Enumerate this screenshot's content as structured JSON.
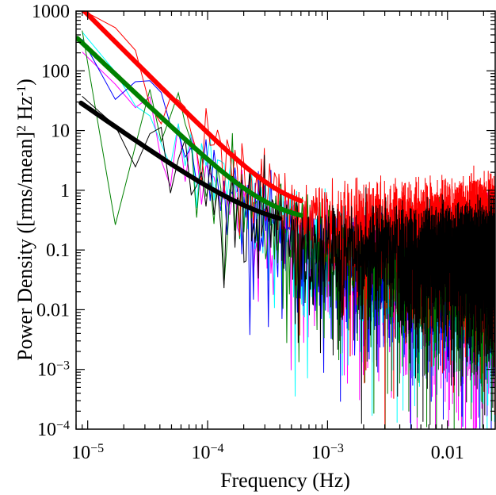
{
  "chart_data": {
    "type": "line",
    "title": "",
    "xlabel": "Frequency (Hz)",
    "ylabel_parts": [
      "Power Density ([rms/mean]",
      "2",
      " Hz",
      "-1",
      ")"
    ],
    "x_scale": "log",
    "y_scale": "log",
    "xlim": [
      8e-06,
      0.025
    ],
    "ylim": [
      0.0001,
      1000
    ],
    "x_ticks": [
      {
        "value": 1e-05,
        "base": "10",
        "exp": "−5"
      },
      {
        "value": 0.0001,
        "base": "10",
        "exp": "−4"
      },
      {
        "value": 0.001,
        "base": "10",
        "exp": "−3"
      },
      {
        "value": 0.01,
        "text": "0.01"
      }
    ],
    "y_ticks": [
      {
        "value": 1000,
        "text": "1000"
      },
      {
        "value": 100,
        "text": "100"
      },
      {
        "value": 10,
        "text": "10"
      },
      {
        "value": 1,
        "text": "1"
      },
      {
        "value": 0.1,
        "text": "0.1"
      },
      {
        "value": 0.01,
        "text": "0.01"
      },
      {
        "value": 0.001,
        "base": "10",
        "exp": "−3"
      },
      {
        "value": 0.0001,
        "base": "10",
        "exp": "−4"
      }
    ],
    "grid": false,
    "legend": "none",
    "noisy_series": [
      {
        "color": "#ff00ff",
        "f_min": 9e-06,
        "df": 8e-06,
        "amplitude": 120,
        "slope": 1.8,
        "white": 0.08,
        "seed": 11
      },
      {
        "color": "#00ffff",
        "f_min": 9e-06,
        "df": 8e-06,
        "amplitude": 260,
        "slope": 1.9,
        "white": 0.1,
        "seed": 23
      },
      {
        "color": "#0000ff",
        "f_min": 9e-06,
        "df": 8e-06,
        "amplitude": 200,
        "slope": 1.9,
        "white": 0.09,
        "seed": 37
      },
      {
        "color": "#008000",
        "f_min": 9e-06,
        "df": 8e-06,
        "amplitude": 280,
        "slope": 1.9,
        "white": 0.1,
        "seed": 41
      },
      {
        "color": "#ff0000",
        "f_min": 9e-06,
        "df": 8e-06,
        "amplitude": 620,
        "slope": 2.0,
        "white": 0.35,
        "seed": 53
      },
      {
        "color": "#000000",
        "f_min": 9e-06,
        "df": 8e-06,
        "amplitude": 24,
        "slope": 1.4,
        "white": 0.12,
        "seed": 67
      }
    ],
    "model_series": [
      {
        "color": "#ff0000",
        "width": 6,
        "f_start": 8.2e-06,
        "f_end": 0.0006,
        "amplitude": 880,
        "slope": 2.0,
        "white": 0.42
      },
      {
        "color": "#008000",
        "width": 6,
        "f_start": 8.2e-06,
        "f_end": 0.0006,
        "amplitude": 240,
        "slope": 1.9,
        "white": 0.28
      },
      {
        "color": "#000000",
        "width": 6,
        "f_start": 8.8e-06,
        "f_end": 0.0004,
        "amplitude": 24,
        "slope": 1.4,
        "white": 0.2
      }
    ]
  }
}
